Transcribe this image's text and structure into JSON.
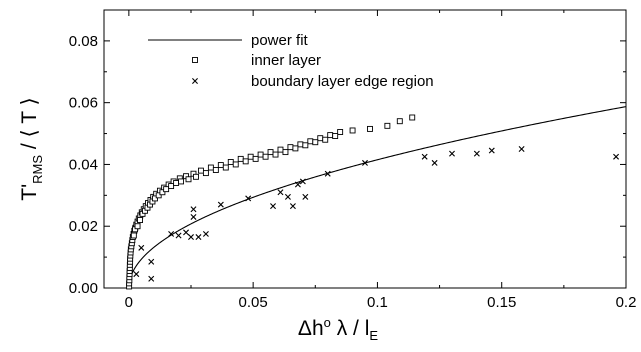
{
  "chart_data": {
    "type": "scatter",
    "xlim": [
      -0.01,
      0.2
    ],
    "ylim": [
      0.0,
      0.09
    ],
    "x_ticks": [
      "0",
      "0.05",
      "0.1",
      "0.15",
      "0.2"
    ],
    "y_ticks": [
      "0.00",
      "0.02",
      "0.04",
      "0.06",
      "0.08"
    ],
    "xlabel": {
      "prefix": "Δh",
      "sup": "o",
      "mid": " λ / l",
      "sub": "E"
    },
    "ylabel": {
      "prefix": "T'",
      "sub": "RMS",
      "suffix": " / ⟨ T ⟩"
    },
    "legend_position": "top-left",
    "series": [
      {
        "name": "power fit",
        "kind": "line",
        "power_fit": {
          "coefficient": 0.1313,
          "exponent": 0.5
        }
      },
      {
        "name": "inner layer",
        "kind": "marker",
        "marker": "square",
        "points": [
          [
            0.0001,
            0.0005
          ],
          [
            0.0001,
            0.0015
          ],
          [
            0.0002,
            0.0025
          ],
          [
            0.0002,
            0.0035
          ],
          [
            0.0003,
            0.0045
          ],
          [
            0.0003,
            0.0055
          ],
          [
            0.0004,
            0.0065
          ],
          [
            0.0004,
            0.0075
          ],
          [
            0.0005,
            0.0085
          ],
          [
            0.0005,
            0.0095
          ],
          [
            0.0006,
            0.0105
          ],
          [
            0.0007,
            0.0115
          ],
          [
            0.0008,
            0.0125
          ],
          [
            0.001,
            0.0135
          ],
          [
            0.0012,
            0.0145
          ],
          [
            0.0014,
            0.0155
          ],
          [
            0.0016,
            0.0165
          ],
          [
            0.0019,
            0.0175
          ],
          [
            0.0022,
            0.0185
          ],
          [
            0.0026,
            0.0195
          ],
          [
            0.003,
            0.0205
          ],
          [
            0.0035,
            0.0215
          ],
          [
            0.004,
            0.0225
          ],
          [
            0.0046,
            0.0235
          ],
          [
            0.0052,
            0.0245
          ],
          [
            0.006,
            0.0255
          ],
          [
            0.0068,
            0.0265
          ],
          [
            0.0077,
            0.0275
          ],
          [
            0.0087,
            0.0285
          ],
          [
            0.0098,
            0.0295
          ],
          [
            0.011,
            0.0305
          ],
          [
            0.0125,
            0.0315
          ],
          [
            0.0142,
            0.0325
          ],
          [
            0.016,
            0.0335
          ],
          [
            0.018,
            0.0345
          ],
          [
            0.0205,
            0.0355
          ],
          [
            0.023,
            0.0362
          ],
          [
            0.026,
            0.037
          ],
          [
            0.029,
            0.038
          ],
          [
            0.033,
            0.039
          ],
          [
            0.037,
            0.0398
          ],
          [
            0.041,
            0.0408
          ],
          [
            0.045,
            0.0418
          ],
          [
            0.049,
            0.0425
          ],
          [
            0.053,
            0.0432
          ],
          [
            0.057,
            0.044
          ],
          [
            0.061,
            0.0448
          ],
          [
            0.065,
            0.0456
          ],
          [
            0.069,
            0.0465
          ],
          [
            0.073,
            0.0475
          ],
          [
            0.077,
            0.0485
          ],
          [
            0.081,
            0.0495
          ],
          [
            0.085,
            0.0505
          ],
          [
            0.09,
            0.051
          ],
          [
            0.097,
            0.0515
          ],
          [
            0.104,
            0.0525
          ],
          [
            0.109,
            0.054
          ],
          [
            0.114,
            0.0552
          ],
          [
            0.002,
            0.017
          ],
          [
            0.0025,
            0.019
          ],
          [
            0.0035,
            0.02
          ],
          [
            0.0045,
            0.022
          ],
          [
            0.0055,
            0.024
          ],
          [
            0.0065,
            0.025
          ],
          [
            0.0075,
            0.026
          ],
          [
            0.0085,
            0.027
          ],
          [
            0.0095,
            0.028
          ],
          [
            0.0105,
            0.029
          ],
          [
            0.012,
            0.03
          ],
          [
            0.0135,
            0.031
          ],
          [
            0.015,
            0.032
          ],
          [
            0.017,
            0.033
          ],
          [
            0.019,
            0.034
          ],
          [
            0.021,
            0.0345
          ],
          [
            0.024,
            0.0352
          ],
          [
            0.027,
            0.036
          ],
          [
            0.031,
            0.0372
          ],
          [
            0.035,
            0.0382
          ],
          [
            0.039,
            0.039
          ],
          [
            0.043,
            0.04
          ],
          [
            0.047,
            0.041
          ],
          [
            0.051,
            0.0418
          ],
          [
            0.055,
            0.0425
          ],
          [
            0.059,
            0.0432
          ],
          [
            0.063,
            0.044
          ],
          [
            0.067,
            0.0452
          ],
          [
            0.071,
            0.0462
          ],
          [
            0.075,
            0.0472
          ],
          [
            0.079,
            0.048
          ],
          [
            0.083,
            0.0492
          ]
        ]
      },
      {
        "name": "boundary layer edge region",
        "kind": "marker",
        "marker": "x",
        "points": [
          [
            0.003,
            0.0045
          ],
          [
            0.005,
            0.013
          ],
          [
            0.009,
            0.0085
          ],
          [
            0.009,
            0.003
          ],
          [
            0.017,
            0.0175
          ],
          [
            0.02,
            0.017
          ],
          [
            0.023,
            0.018
          ],
          [
            0.025,
            0.0165
          ],
          [
            0.026,
            0.023
          ],
          [
            0.026,
            0.0255
          ],
          [
            0.028,
            0.0165
          ],
          [
            0.031,
            0.0175
          ],
          [
            0.037,
            0.027
          ],
          [
            0.048,
            0.029
          ],
          [
            0.058,
            0.0265
          ],
          [
            0.061,
            0.031
          ],
          [
            0.064,
            0.0295
          ],
          [
            0.066,
            0.0265
          ],
          [
            0.068,
            0.0335
          ],
          [
            0.07,
            0.0345
          ],
          [
            0.071,
            0.0295
          ],
          [
            0.08,
            0.037
          ],
          [
            0.095,
            0.0405
          ],
          [
            0.119,
            0.0425
          ],
          [
            0.123,
            0.0405
          ],
          [
            0.13,
            0.0435
          ],
          [
            0.14,
            0.0435
          ],
          [
            0.146,
            0.0445
          ],
          [
            0.158,
            0.045
          ],
          [
            0.196,
            0.0425
          ]
        ]
      }
    ]
  }
}
